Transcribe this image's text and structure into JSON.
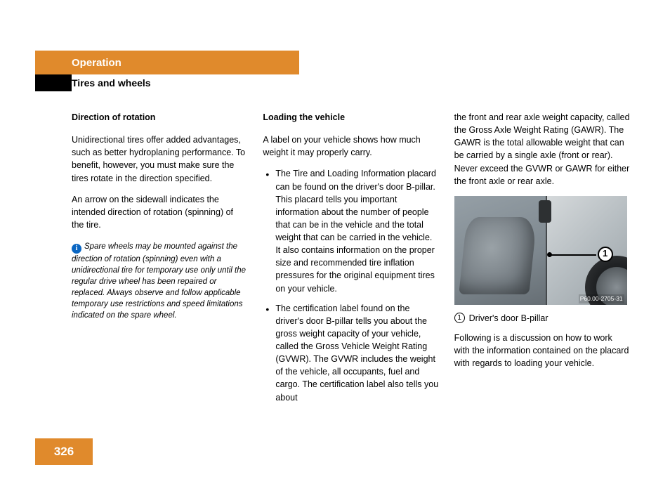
{
  "header": {
    "chapter": "Operation",
    "section": "Tires and wheels"
  },
  "col1": {
    "h": "Direction of rotation",
    "p1": "Unidirectional tires offer added advantages, such as better hydroplaning performance. To benefit, however, you must make sure the tires rotate in the direction specified.",
    "p2": "An arrow on the sidewall indicates the intended direction of rotation (spinning) of the tire.",
    "note": "Spare wheels may be mounted against the direction of rotation (spinning) even with a unidirectional tire for temporary use only until the regular drive wheel has been repaired or replaced. Always observe and follow applicable temporary use restrictions and speed limitations indicated on the spare wheel."
  },
  "col2": {
    "h": "Loading the vehicle",
    "p1": "A label on your vehicle shows how much weight it may properly carry.",
    "b1": "The Tire and Loading Information placard can be found on the driver's door B-pillar. This placard tells you important information about the number of people that can be in the vehicle and the total weight that can be carried in the vehicle. It also contains information on the proper size and recommended tire inflation pressures for the original equipment tires on your vehicle.",
    "b2": "The certification label found on the driver's door B-pillar tells you about the gross weight capacity of your vehicle, called the Gross Vehicle Weight Rating (GVWR). The GVWR includes the weight of the vehicle, all occupants, fuel and cargo. The certification label also tells you about"
  },
  "col3": {
    "p1": "the front and rear axle weight capacity, called the Gross Axle Weight Rating (GAWR). The GAWR is the total allowable weight that can be carried by a single axle (front or rear). Never exceed the GVWR or GAWR for either the front axle or rear axle.",
    "fig_code": "P60.00-2705-31",
    "callout_num": "1",
    "key_num": "1",
    "key_text": "Driver's door B-pillar",
    "p2": "Following is a discussion on how to work with the information contained on the placard with regards to loading your vehicle."
  },
  "page_number": "326",
  "colors": {
    "accent": "#e08a2c",
    "info_icon": "#0a66c2"
  }
}
